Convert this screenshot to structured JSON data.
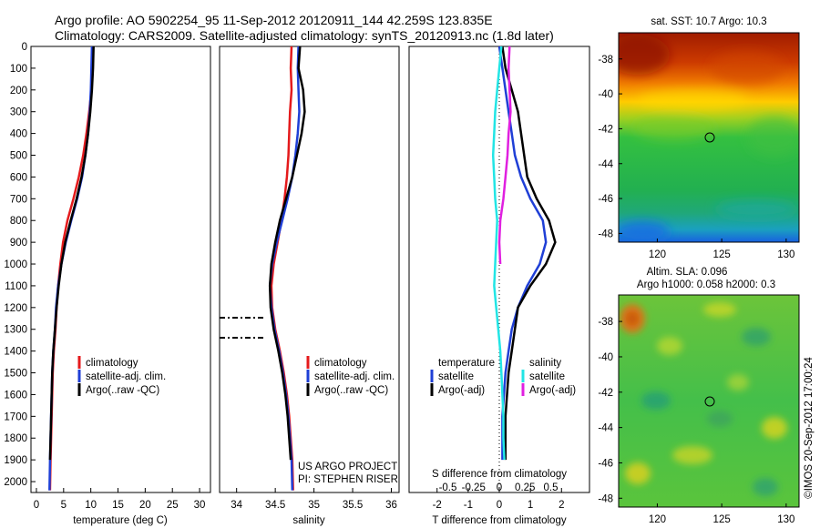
{
  "header": {
    "line1": "Argo profile: AO 5902254_95 11-Sep-2012 20120911_144 42.259S 123.835E",
    "line2": "Climatology: CARS2009. Satellite-adjusted climatology: synTS_20120913.nc (1.8d later)"
  },
  "colors": {
    "climatology": "#e41a1c",
    "satellite": "#1f3fd6",
    "argo": "#000000",
    "salinity_satellite": "#22e5e5",
    "salinity_argo": "#e020e0"
  },
  "chart_data": [
    {
      "type": "line",
      "name": "temperature",
      "xlabel": "temperature (deg C)",
      "xticks": [
        "0",
        "5",
        "10",
        "15",
        "20",
        "25",
        "30"
      ],
      "xlim": [
        -1,
        32
      ],
      "ylim": [
        0,
        2050
      ],
      "yticks": [
        "0",
        "100",
        "200",
        "300",
        "400",
        "500",
        "600",
        "700",
        "800",
        "900",
        "1000",
        "1100",
        "1200",
        "1300",
        "1400",
        "1500",
        "1600",
        "1700",
        "1800",
        "1900",
        "2000"
      ],
      "legend": [
        "climatology",
        "satellite-adj. clim.",
        "Argo(..raw -QC)"
      ],
      "series": [
        {
          "name": "climatology",
          "x": [
            10.4,
            10.3,
            10.1,
            9.7,
            9.2,
            8.6,
            7.8,
            6.8,
            5.7,
            4.9,
            4.4,
            4.0,
            3.7,
            3.5,
            3.2,
            3.0,
            2.9,
            2.8,
            2.7,
            2.6,
            2.5
          ],
          "y": [
            0,
            100,
            200,
            300,
            400,
            500,
            600,
            700,
            800,
            900,
            1000,
            1100,
            1200,
            1300,
            1400,
            1500,
            1600,
            1700,
            1800,
            1900,
            2040
          ]
        },
        {
          "name": "satellite-adj. clim.",
          "x": [
            10.2,
            10.1,
            10.0,
            9.8,
            9.5,
            9.0,
            8.4,
            7.5,
            6.4,
            5.4,
            4.6,
            4.0,
            3.6,
            3.4,
            3.1,
            2.9,
            2.8,
            2.7,
            2.6,
            2.5,
            2.4
          ],
          "y": [
            0,
            100,
            200,
            300,
            400,
            500,
            600,
            700,
            800,
            900,
            1000,
            1100,
            1200,
            1300,
            1400,
            1500,
            1600,
            1700,
            1800,
            1900,
            2040
          ]
        },
        {
          "name": "Argo(..raw -QC)",
          "x": [
            10.5,
            10.4,
            10.2,
            9.9,
            9.5,
            9.0,
            8.3,
            7.4,
            6.3,
            5.3,
            4.6,
            4.1,
            3.7,
            3.4,
            3.1,
            2.9,
            2.8,
            2.7,
            2.6,
            2.5
          ],
          "y": [
            0,
            100,
            200,
            300,
            400,
            500,
            600,
            700,
            800,
            900,
            1000,
            1100,
            1200,
            1300,
            1400,
            1500,
            1600,
            1700,
            1800,
            1900
          ]
        }
      ]
    },
    {
      "type": "line",
      "name": "salinity",
      "xlabel": "salinity",
      "xticks": [
        "34",
        "34.5",
        "35",
        "35.5",
        "36"
      ],
      "xlim": [
        33.78,
        36.1
      ],
      "ylim": [
        0,
        2050
      ],
      "legend": [
        "climatology",
        "satellite-adj. clim.",
        "Argo(..raw -QC)"
      ],
      "note": [
        "US ARGO PROJECT",
        "PI: STEPHEN RISER"
      ],
      "series": [
        {
          "name": "climatology",
          "x": [
            34.71,
            34.7,
            34.71,
            34.69,
            34.68,
            34.67,
            34.65,
            34.62,
            34.58,
            34.53,
            34.48,
            34.45,
            34.46,
            34.5,
            34.56,
            34.61,
            34.65,
            34.68,
            34.7,
            34.72,
            34.73
          ],
          "y": [
            0,
            100,
            200,
            300,
            400,
            500,
            600,
            700,
            800,
            900,
            1000,
            1100,
            1200,
            1300,
            1400,
            1500,
            1600,
            1700,
            1800,
            1900,
            2040
          ]
        },
        {
          "name": "satellite-adj. clim.",
          "x": [
            34.8,
            34.79,
            34.8,
            34.81,
            34.79,
            34.76,
            34.72,
            34.66,
            34.59,
            34.52,
            34.46,
            34.43,
            34.45,
            34.49,
            34.55,
            34.6,
            34.64,
            34.67,
            34.69,
            34.71,
            34.72
          ],
          "y": [
            0,
            100,
            200,
            300,
            400,
            500,
            600,
            700,
            800,
            900,
            1000,
            1100,
            1200,
            1300,
            1400,
            1500,
            1600,
            1700,
            1800,
            1900,
            2040
          ]
        },
        {
          "name": "Argo(..raw -QC)",
          "x": [
            34.82,
            34.8,
            34.86,
            34.88,
            34.84,
            34.78,
            34.72,
            34.64,
            34.56,
            34.5,
            34.45,
            34.43,
            34.44,
            34.48,
            34.54,
            34.59,
            34.63,
            34.66,
            34.68,
            34.7
          ],
          "y": [
            0,
            100,
            200,
            300,
            400,
            500,
            600,
            700,
            800,
            900,
            1000,
            1100,
            1200,
            1300,
            1400,
            1500,
            1600,
            1700,
            1800,
            1900
          ]
        }
      ]
    },
    {
      "type": "line",
      "name": "differences",
      "xlabel": "T difference from climatology",
      "xlabel2": "S difference from climatology",
      "xticks": [
        "-2",
        "-1",
        "0",
        "1",
        "2"
      ],
      "xticks2": [
        "-0.5",
        "-0.25",
        "0",
        "0.25",
        "0.5"
      ],
      "xlim": [
        -2.9,
        2.9
      ],
      "ylim": [
        0,
        2050
      ],
      "legend_temperature": [
        "temperature",
        "satellite",
        "Argo(-adj)"
      ],
      "legend_salinity": [
        "salinity",
        "satellite",
        "Argo(-adj)"
      ],
      "series": [
        {
          "name": "satellite",
          "x": [
            0.0,
            0.1,
            0.2,
            0.3,
            0.4,
            0.5,
            0.7,
            1.0,
            1.4,
            1.5,
            1.3,
            0.9,
            0.6,
            0.4,
            0.3,
            0.2,
            0.15,
            0.1,
            0.1,
            0.1
          ],
          "y": [
            0,
            100,
            200,
            300,
            400,
            500,
            600,
            700,
            800,
            900,
            1000,
            1100,
            1200,
            1300,
            1400,
            1500,
            1600,
            1700,
            1800,
            1900
          ]
        },
        {
          "name": "Argo(-adj)",
          "x": [
            0.1,
            0.2,
            0.4,
            0.6,
            0.7,
            0.8,
            0.9,
            1.2,
            1.6,
            1.8,
            1.5,
            1.0,
            0.6,
            0.5,
            0.4,
            0.3,
            0.25,
            0.2,
            0.2,
            0.2
          ],
          "y": [
            0,
            100,
            200,
            300,
            400,
            500,
            600,
            700,
            800,
            900,
            1000,
            1100,
            1200,
            1300,
            1400,
            1500,
            1600,
            1700,
            1800,
            1900
          ]
        },
        {
          "name": "satellite",
          "x": [
            0.02,
            0.0,
            -0.02,
            -0.04,
            -0.05,
            -0.06,
            -0.05,
            -0.04,
            -0.02,
            -0.03,
            -0.04,
            -0.05,
            -0.03,
            -0.01,
            0.01,
            0.02,
            0.03,
            0.04,
            0.04,
            0.05
          ],
          "y": [
            0,
            100,
            200,
            300,
            400,
            500,
            600,
            700,
            800,
            900,
            1000,
            1100,
            1200,
            1300,
            1400,
            1500,
            1600,
            1700,
            1800,
            1900
          ],
          "axis": "salinity"
        },
        {
          "name": "Argo(-adj)",
          "x": [
            0.1,
            0.09,
            0.1,
            0.11,
            0.09,
            0.08,
            0.06,
            0.04,
            0.01,
            0.0,
            0.01
          ],
          "y": [
            0,
            100,
            200,
            300,
            400,
            500,
            600,
            700,
            800,
            900,
            1000
          ],
          "axis": "salinity"
        }
      ]
    },
    {
      "type": "heatmap",
      "name": "sst map",
      "title": "sat. SST: 10.7  Argo: 10.3",
      "xticks": [
        "120",
        "125",
        "130"
      ],
      "xlim": [
        117,
        131
      ],
      "yticks": [
        "-38",
        "-40",
        "-42",
        "-44",
        "-46",
        "-48"
      ],
      "ylim": [
        -48.5,
        -36.5
      ],
      "marker": {
        "lon": 123.835,
        "lat": -42.259
      }
    },
    {
      "type": "heatmap",
      "name": "sla map",
      "title_line1": "Altim. SLA: 0.096",
      "title_line2": "Argo h1000: 0.058  h2000: 0.3",
      "xticks": [
        "120",
        "125",
        "130"
      ],
      "xlim": [
        117,
        131
      ],
      "yticks": [
        "-38",
        "-40",
        "-42",
        "-44",
        "-46",
        "-48"
      ],
      "ylim": [
        -48.5,
        -36.5
      ],
      "marker": {
        "lon": 123.835,
        "lat": -42.259
      },
      "side_text": "©IMOS 20-Sep-2012 17:00:24"
    }
  ]
}
